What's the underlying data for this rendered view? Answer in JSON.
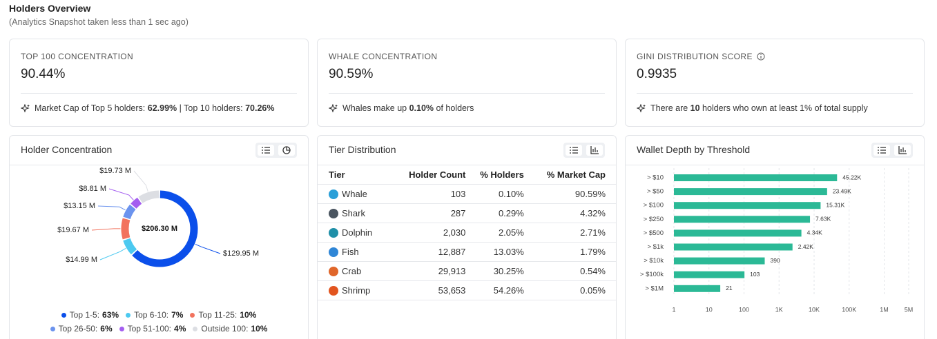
{
  "header": {
    "title": "Holders Overview",
    "subtitle": "(Analytics Snapshot taken less than 1 sec ago)"
  },
  "stats": [
    {
      "label": "TOP 100 CONCENTRATION",
      "value": "90.44%",
      "info": false,
      "note": [
        {
          "text": "Market Cap of Top 5 holders: ",
          "bold": false
        },
        {
          "text": "62.99%",
          "bold": true
        },
        {
          "text": " | Top 10 holders: ",
          "bold": false
        },
        {
          "text": "70.26%",
          "bold": true
        }
      ]
    },
    {
      "label": "WHALE CONCENTRATION",
      "value": "90.59%",
      "info": false,
      "note": [
        {
          "text": "Whales make up ",
          "bold": false
        },
        {
          "text": "0.10%",
          "bold": true
        },
        {
          "text": " of holders",
          "bold": false
        }
      ]
    },
    {
      "label": "GINI DISTRIBUTION SCORE",
      "value": "0.9935",
      "info": true,
      "note": [
        {
          "text": "There are ",
          "bold": false
        },
        {
          "text": "10",
          "bold": true
        },
        {
          "text": " holders who own at least 1% of total supply",
          "bold": false
        }
      ]
    }
  ],
  "table": {
    "title": "Tier Distribution",
    "columns": [
      "Tier",
      "Holder Count",
      "% Holders",
      "% Market Cap"
    ],
    "rows": [
      [
        "Whale",
        "103",
        "0.10%",
        "90.59%"
      ],
      [
        "Shark",
        "287",
        "0.29%",
        "4.32%"
      ],
      [
        "Dolphin",
        "2,030",
        "2.05%",
        "2.71%"
      ],
      [
        "Fish",
        "12,887",
        "13.03%",
        "1.79%"
      ],
      [
        "Crab",
        "29,913",
        "30.25%",
        "0.54%"
      ],
      [
        "Shrimp",
        "53,653",
        "54.26%",
        "0.05%"
      ]
    ]
  },
  "chart_data": [
    {
      "type": "pie",
      "donut": true,
      "title": "Holder Concentration",
      "categories": [
        "Top 1-5:",
        "Top 6-10:",
        "Top 11-25:",
        "Top 26-50:",
        "Top 51-100:",
        "Outside 100:"
      ],
      "values": [
        129.95,
        14.99,
        19.67,
        13.15,
        8.81,
        19.73
      ],
      "value_labels": [
        "$129.95 M",
        "$14.99 M",
        "$19.67 M",
        "$13.15 M",
        "$8.81 M",
        "$19.73 M"
      ],
      "colors": [
        "#0b4fea",
        "#4cc9f0",
        "#f2735e",
        "#6b93ee",
        "#a45ef0",
        "#dcdee3"
      ],
      "total": 206.3,
      "total_label": "$206.30 M",
      "shares": [
        63,
        7,
        10,
        6,
        4,
        10
      ],
      "share_labels": [
        "63%",
        "7%",
        "10%",
        "6%",
        "4%",
        "10%"
      ]
    },
    {
      "type": "bar",
      "orientation": "horizontal",
      "title": "Wallet Depth by Threshold",
      "categories": [
        "> $10",
        "> $50",
        "> $100",
        "> $250",
        "> $500",
        "> $1k",
        "> $10k",
        "> $100k",
        "> $1M"
      ],
      "values": [
        45220,
        23490,
        15310,
        7630,
        4340,
        2420,
        390,
        103,
        21
      ],
      "value_labels": [
        "45.22K",
        "23.49K",
        "15.31K",
        "7.63K",
        "4.34K",
        "2.42K",
        "390",
        "103",
        "21"
      ],
      "color": "#2bb996",
      "log_x": true,
      "grid": true,
      "xlim": [
        1,
        5000000
      ],
      "xticks": [
        1,
        10,
        100,
        {
          "value": 1000,
          "label": "1K"
        },
        {
          "value": 10000,
          "label": "10K"
        },
        {
          "value": 100000,
          "label": "100K"
        },
        {
          "value": 1000000,
          "label": "1M"
        },
        {
          "value": 5000000,
          "label": "5M"
        }
      ]
    }
  ]
}
